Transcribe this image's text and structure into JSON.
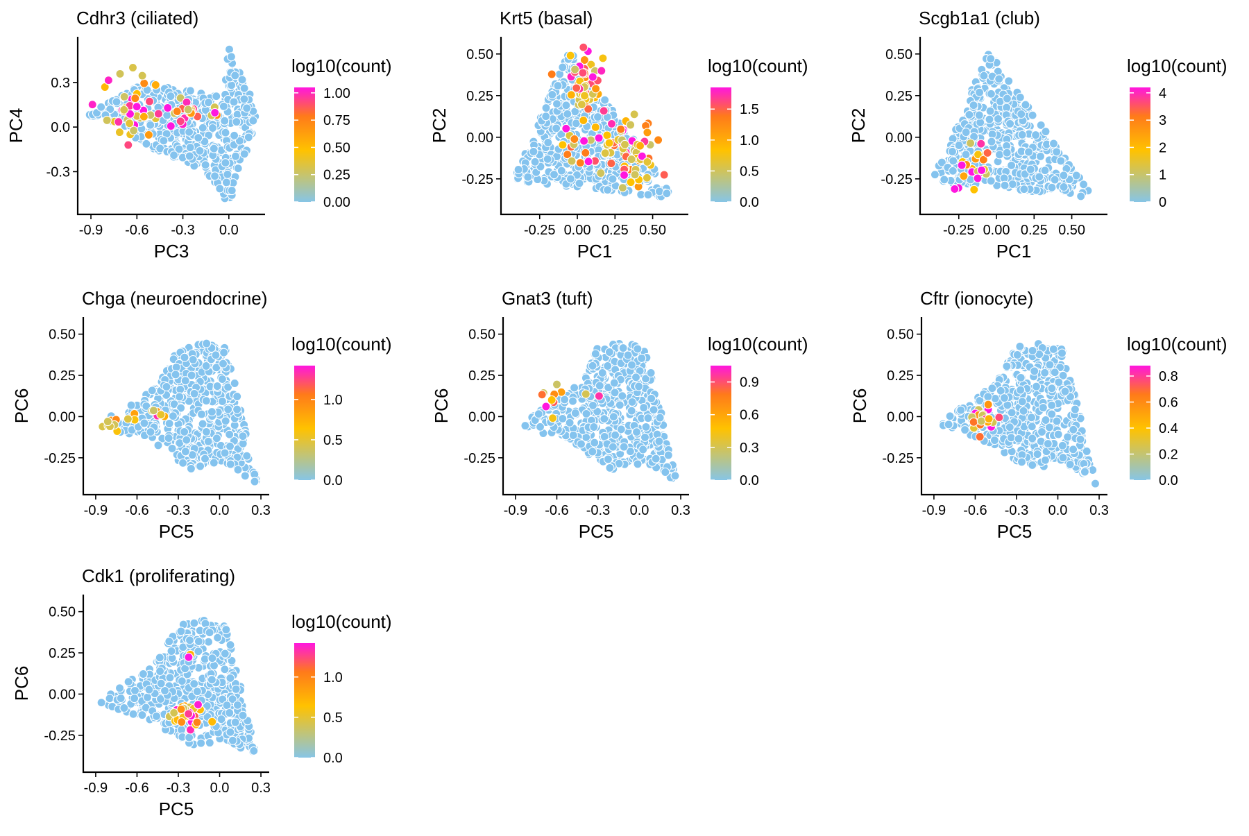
{
  "figure": {
    "colors": {
      "low": "#87c5e6",
      "mid": "#ffc200",
      "high": "#ff7a1a",
      "top": "#ff16df",
      "background_point": "#84c3ee",
      "point_edge": "#ffffff"
    }
  },
  "chart_data": [
    {
      "type": "scatter",
      "title": "Cdhr3 (ciliated)",
      "xlabel": "PC3",
      "ylabel": "PC4",
      "xlim": [
        -0.95,
        0.2
      ],
      "ylim": [
        -0.55,
        0.57
      ],
      "xticks": [
        -0.9,
        -0.6,
        -0.3,
        0.0
      ],
      "xtick_labels": [
        "-0.9",
        "-0.6",
        "-0.3",
        "0.0"
      ],
      "yticks": [
        -0.3,
        0.0,
        0.3
      ],
      "ytick_labels": [
        "-0.3",
        "0.0",
        "0.3"
      ],
      "shape": [
        [
          -0.93,
          0.08
        ],
        [
          -0.55,
          0.3
        ],
        [
          -0.35,
          0.27
        ],
        [
          -0.05,
          0.2
        ],
        [
          0.0,
          0.53
        ],
        [
          0.2,
          0.1
        ],
        [
          0.0,
          -0.52
        ],
        [
          -0.15,
          -0.3
        ],
        [
          -0.45,
          -0.18
        ],
        [
          -0.75,
          0.02
        ]
      ],
      "hotspots": [
        {
          "x": -0.62,
          "y": 0.12,
          "r": 0.2,
          "n": 42
        },
        {
          "x": -0.28,
          "y": 0.08,
          "r": 0.12,
          "n": 16
        },
        {
          "x": -0.1,
          "y": 0.1,
          "r": 0.05,
          "n": 4
        }
      ],
      "legend": {
        "title": "log10(count)",
        "ticks": [
          0.0,
          0.25,
          0.5,
          0.75,
          1.0
        ],
        "tick_labels": [
          "0.00",
          "0.25",
          "0.50",
          "0.75",
          "1.00"
        ],
        "max": 1.05,
        "placement": "right"
      }
    },
    {
      "type": "scatter",
      "title": "Krt5 (basal)",
      "xlabel": "PC1",
      "ylabel": "PC2",
      "xlim": [
        -0.47,
        0.7
      ],
      "ylim": [
        -0.43,
        0.57
      ],
      "xticks": [
        -0.25,
        0.0,
        0.25,
        0.5
      ],
      "xtick_labels": [
        "-0.25",
        "0.00",
        "0.25",
        "0.50"
      ],
      "yticks": [
        -0.25,
        0.0,
        0.25,
        0.5
      ],
      "ytick_labels": [
        "-0.25",
        "0.00",
        "0.25",
        "0.50"
      ],
      "shape": [
        [
          -0.43,
          -0.26
        ],
        [
          -0.05,
          0.52
        ],
        [
          0.3,
          0.08
        ],
        [
          0.65,
          -0.37
        ],
        [
          0.2,
          -0.32
        ],
        [
          -0.25,
          -0.28
        ]
      ],
      "hotspots": [
        {
          "x": 0.05,
          "y": 0.3,
          "r": 0.2,
          "n": 55
        },
        {
          "x": 0.35,
          "y": -0.1,
          "r": 0.22,
          "n": 65
        },
        {
          "x": 0.0,
          "y": -0.05,
          "r": 0.15,
          "n": 14
        }
      ],
      "legend": {
        "title": "log10(count)",
        "ticks": [
          0.0,
          0.5,
          1.0,
          1.5
        ],
        "tick_labels": [
          "0.0",
          "0.5",
          "1.0",
          "1.5"
        ],
        "max": 1.85,
        "placement": "right"
      }
    },
    {
      "type": "scatter",
      "title": "Scgb1a1 (club)",
      "xlabel": "PC1",
      "ylabel": "PC2",
      "xlim": [
        -0.47,
        0.7
      ],
      "ylim": [
        -0.43,
        0.57
      ],
      "xticks": [
        -0.25,
        0.0,
        0.25,
        0.5
      ],
      "xtick_labels": [
        "-0.25",
        "0.00",
        "0.25",
        "0.50"
      ],
      "yticks": [
        -0.25,
        0.0,
        0.25,
        0.5
      ],
      "ytick_labels": [
        "-0.25",
        "0.00",
        "0.25",
        "0.50"
      ],
      "shape": [
        [
          -0.43,
          -0.26
        ],
        [
          -0.05,
          0.52
        ],
        [
          0.3,
          0.08
        ],
        [
          0.65,
          -0.37
        ],
        [
          0.2,
          -0.32
        ],
        [
          -0.25,
          -0.28
        ]
      ],
      "hotspots": [
        {
          "x": -0.15,
          "y": -0.2,
          "r": 0.15,
          "n": 22
        }
      ],
      "legend": {
        "title": "log10(count)",
        "ticks": [
          0,
          1,
          2,
          3,
          4
        ],
        "tick_labels": [
          "0",
          "1",
          "2",
          "3",
          "4"
        ],
        "max": 4.2,
        "placement": "right"
      }
    },
    {
      "type": "scatter",
      "title": "Chga (neuroendocrine)",
      "xlabel": "PC5",
      "ylabel": "PC6",
      "xlim": [
        -0.95,
        0.32
      ],
      "ylim": [
        -0.44,
        0.57
      ],
      "xticks": [
        -0.9,
        -0.6,
        -0.3,
        0.0,
        0.3
      ],
      "xtick_labels": [
        "-0.9",
        "-0.6",
        "-0.3",
        "0.0",
        "0.3"
      ],
      "yticks": [
        -0.25,
        0.0,
        0.25,
        0.5
      ],
      "ytick_labels": [
        "-0.25",
        "0.00",
        "0.25",
        "0.50"
      ],
      "shape": [
        [
          -0.88,
          -0.05
        ],
        [
          -0.45,
          0.2
        ],
        [
          -0.3,
          0.43
        ],
        [
          -0.1,
          0.45
        ],
        [
          0.05,
          0.42
        ],
        [
          0.28,
          -0.42
        ],
        [
          0.05,
          -0.28
        ],
        [
          -0.2,
          -0.32
        ],
        [
          -0.5,
          -0.16
        ]
      ],
      "hotspots": [
        {
          "x": -0.78,
          "y": -0.04,
          "r": 0.08,
          "n": 10
        },
        {
          "x": -0.45,
          "y": 0.03,
          "r": 0.06,
          "n": 7
        },
        {
          "x": -0.6,
          "y": 0.0,
          "r": 0.07,
          "n": 3
        }
      ],
      "legend": {
        "title": "log10(count)",
        "ticks": [
          0.0,
          0.5,
          1.0
        ],
        "tick_labels": [
          "0.0",
          "0.5",
          "1.0"
        ],
        "max": 1.42,
        "placement": "right"
      }
    },
    {
      "type": "scatter",
      "title": "Gnat3 (tuft)",
      "xlabel": "PC5",
      "ylabel": "PC6",
      "xlim": [
        -0.95,
        0.32
      ],
      "ylim": [
        -0.44,
        0.57
      ],
      "xticks": [
        -0.9,
        -0.6,
        -0.3,
        0.0,
        0.3
      ],
      "xtick_labels": [
        "-0.9",
        "-0.6",
        "-0.3",
        "0.0",
        "0.3"
      ],
      "yticks": [
        -0.25,
        0.0,
        0.25,
        0.5
      ],
      "ytick_labels": [
        "-0.25",
        "0.00",
        "0.25",
        "0.50"
      ],
      "shape": [
        [
          -0.88,
          -0.05
        ],
        [
          -0.45,
          0.2
        ],
        [
          -0.3,
          0.43
        ],
        [
          -0.1,
          0.45
        ],
        [
          0.05,
          0.42
        ],
        [
          0.28,
          -0.42
        ],
        [
          0.05,
          -0.28
        ],
        [
          -0.2,
          -0.32
        ],
        [
          -0.5,
          -0.16
        ]
      ],
      "hotspots": [
        {
          "x": -0.65,
          "y": 0.1,
          "r": 0.12,
          "n": 9
        },
        {
          "x": -0.35,
          "y": 0.15,
          "r": 0.05,
          "n": 2
        }
      ],
      "legend": {
        "title": "log10(count)",
        "ticks": [
          0.0,
          0.3,
          0.6,
          0.9
        ],
        "tick_labels": [
          "0.0",
          "0.3",
          "0.6",
          "0.9"
        ],
        "max": 1.05,
        "placement": "right"
      }
    },
    {
      "type": "scatter",
      "title": "Cftr (ionocyte)",
      "xlabel": "PC5",
      "ylabel": "PC6",
      "xlim": [
        -0.95,
        0.32
      ],
      "ylim": [
        -0.44,
        0.57
      ],
      "xticks": [
        -0.9,
        -0.6,
        -0.3,
        0.0,
        0.3
      ],
      "xtick_labels": [
        "-0.9",
        "-0.6",
        "-0.3",
        "0.0",
        "0.3"
      ],
      "yticks": [
        -0.25,
        0.0,
        0.25,
        0.5
      ],
      "ytick_labels": [
        "-0.25",
        "0.00",
        "0.25",
        "0.50"
      ],
      "shape": [
        [
          -0.88,
          -0.05
        ],
        [
          -0.45,
          0.2
        ],
        [
          -0.3,
          0.43
        ],
        [
          -0.1,
          0.45
        ],
        [
          0.05,
          0.42
        ],
        [
          0.28,
          -0.42
        ],
        [
          0.05,
          -0.28
        ],
        [
          -0.2,
          -0.32
        ],
        [
          -0.5,
          -0.16
        ]
      ],
      "hotspots": [
        {
          "x": -0.55,
          "y": -0.02,
          "r": 0.09,
          "n": 24
        }
      ],
      "legend": {
        "title": "log10(count)",
        "ticks": [
          0.0,
          0.2,
          0.4,
          0.6,
          0.8
        ],
        "tick_labels": [
          "0.0",
          "0.2",
          "0.4",
          "0.6",
          "0.8"
        ],
        "max": 0.88,
        "placement": "right"
      }
    },
    {
      "type": "scatter",
      "title": "Cdk1 (proliferating)",
      "xlabel": "PC5",
      "ylabel": "PC6",
      "xlim": [
        -0.95,
        0.32
      ],
      "ylim": [
        -0.44,
        0.57
      ],
      "xticks": [
        -0.9,
        -0.6,
        -0.3,
        0.0,
        0.3
      ],
      "xtick_labels": [
        "-0.9",
        "-0.6",
        "-0.3",
        "0.0",
        "0.3"
      ],
      "yticks": [
        -0.25,
        0.0,
        0.25,
        0.5
      ],
      "ytick_labels": [
        "-0.25",
        "0.00",
        "0.25",
        "0.50"
      ],
      "shape": [
        [
          -0.88,
          -0.05
        ],
        [
          -0.45,
          0.2
        ],
        [
          -0.3,
          0.43
        ],
        [
          -0.1,
          0.45
        ],
        [
          0.05,
          0.42
        ],
        [
          0.28,
          -0.42
        ],
        [
          0.05,
          -0.28
        ],
        [
          -0.2,
          -0.32
        ],
        [
          -0.5,
          -0.16
        ]
      ],
      "hotspots": [
        {
          "x": -0.22,
          "y": -0.12,
          "r": 0.12,
          "n": 36
        },
        {
          "x": -0.22,
          "y": 0.22,
          "r": 0.03,
          "n": 2
        }
      ],
      "legend": {
        "title": "log10(count)",
        "ticks": [
          0.0,
          0.5,
          1.0
        ],
        "tick_labels": [
          "0.0",
          "0.5",
          "1.0"
        ],
        "max": 1.42,
        "placement": "right"
      }
    }
  ]
}
